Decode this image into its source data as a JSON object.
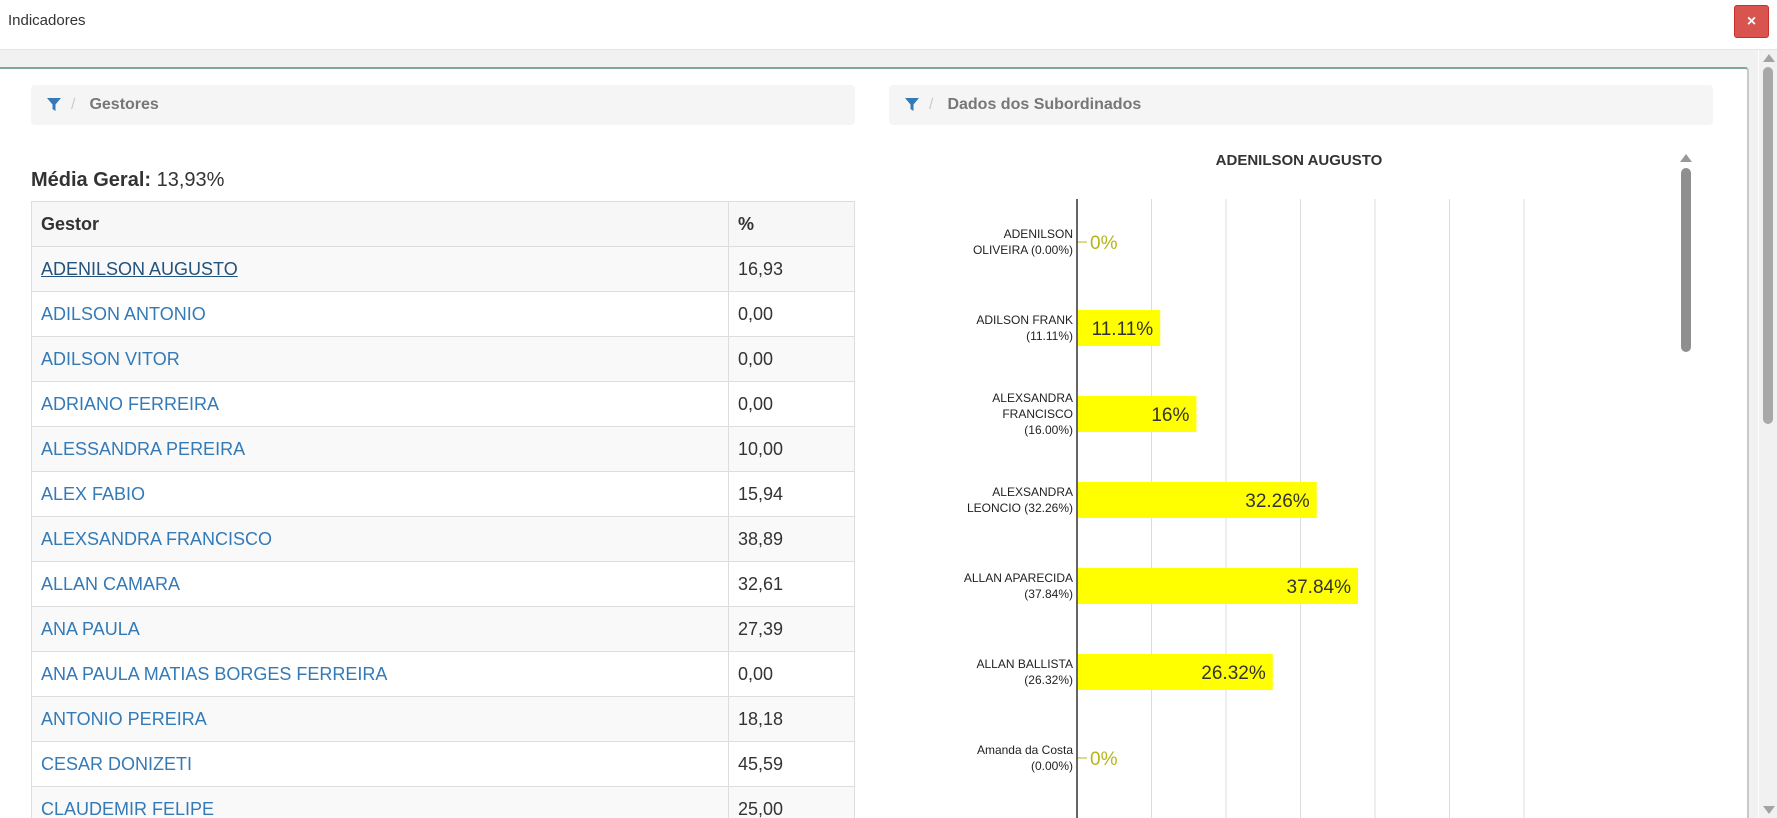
{
  "window": {
    "title": "Indicadores",
    "close_label": "×"
  },
  "left": {
    "breadcrumb_label": "Gestores",
    "media_label": "Média Geral:",
    "media_value": "13,93%",
    "table": {
      "headers": [
        "Gestor",
        "%"
      ],
      "rows": [
        {
          "name": "ADENILSON AUGUSTO",
          "value": "16,93",
          "active": true
        },
        {
          "name": "ADILSON ANTONIO",
          "value": "0,00"
        },
        {
          "name": "ADILSON VITOR",
          "value": "0,00"
        },
        {
          "name": "ADRIANO FERREIRA",
          "value": "0,00"
        },
        {
          "name": "ALESSANDRA PEREIRA",
          "value": "10,00"
        },
        {
          "name": "ALEX FABIO",
          "value": "15,94"
        },
        {
          "name": "ALEXSANDRA FRANCISCO",
          "value": "38,89"
        },
        {
          "name": "ALLAN CAMARA",
          "value": "32,61"
        },
        {
          "name": "ANA PAULA",
          "value": "27,39"
        },
        {
          "name": "ANA PAULA MATIAS BORGES FERREIRA",
          "value": "0,00"
        },
        {
          "name": "ANTONIO PEREIRA",
          "value": "18,18"
        },
        {
          "name": "CESAR DONIZETI",
          "value": "45,59"
        },
        {
          "name": "CLAUDEMIR FELIPE",
          "value": "25,00"
        }
      ]
    }
  },
  "right": {
    "breadcrumb_label": "Dados dos Subordinados",
    "chart_data": {
      "type": "bar",
      "orientation": "horizontal",
      "title": "ADENILSON AUGUSTO",
      "xlim": [
        0,
        60
      ],
      "grid": true,
      "bar_color": "#ffff00",
      "zero_label_color": "#b5b51a",
      "categories": [
        [
          "ADENILSON",
          "OLIVEIRA (0.00%)"
        ],
        [
          "ADILSON FRANK",
          "(11.11%)"
        ],
        [
          "ALEXSANDRA",
          "FRANCISCO",
          "(16.00%)"
        ],
        [
          "ALEXSANDRA",
          "LEONCIO (32.26%)"
        ],
        [
          "ALLAN APARECIDA",
          "(37.84%)"
        ],
        [
          "ALLAN BALLISTA",
          "(26.32%)"
        ],
        [
          "Amanda da Costa",
          "(0.00%)"
        ]
      ],
      "values": [
        0,
        11.11,
        16,
        32.26,
        37.84,
        26.32,
        0
      ],
      "value_labels": [
        "0%",
        "11.11%",
        "16%",
        "32.26%",
        "37.84%",
        "26.32%",
        "0%"
      ]
    }
  }
}
